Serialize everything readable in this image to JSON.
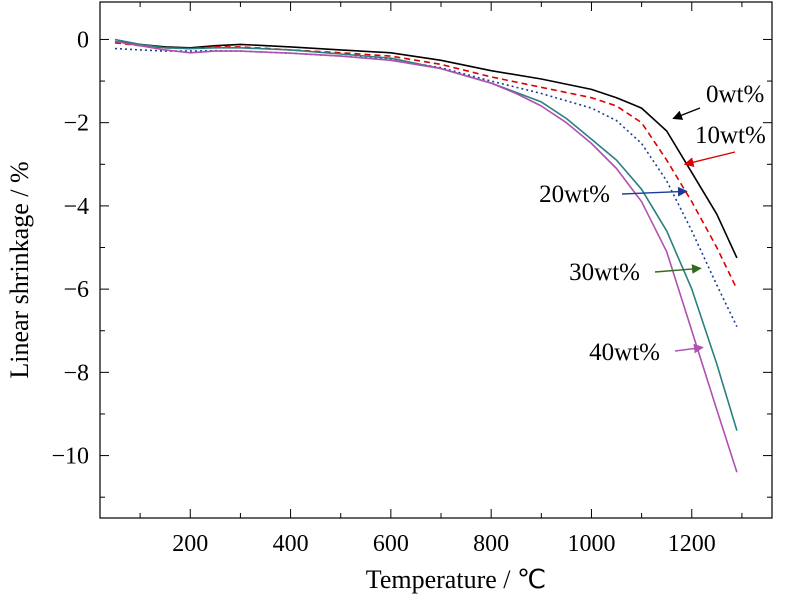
{
  "chart_data": {
    "type": "line",
    "title": "",
    "xlabel": "Temperature / ℃",
    "ylabel": "Linear shrinkage / %",
    "xlim": [
      20,
      1360
    ],
    "ylim": [
      -11.5,
      0.9
    ],
    "xticks": [
      200,
      400,
      600,
      800,
      1000,
      1200
    ],
    "yticks": [
      0,
      -2,
      -4,
      -6,
      -8,
      -10
    ],
    "xtick_labels": [
      "200",
      "400",
      "600",
      "800",
      "1000",
      "1200"
    ],
    "ytick_labels": [
      "0",
      "−2",
      "−4",
      "−6",
      "−8",
      "−10"
    ],
    "grid": false,
    "series": [
      {
        "name": "0wt%",
        "color": "#000000",
        "dash": "solid",
        "x": [
          50,
          100,
          150,
          200,
          250,
          300,
          400,
          500,
          600,
          700,
          800,
          900,
          1000,
          1050,
          1100,
          1150,
          1200,
          1250,
          1290
        ],
        "y": [
          -0.05,
          -0.12,
          -0.18,
          -0.2,
          -0.15,
          -0.12,
          -0.18,
          -0.25,
          -0.32,
          -0.5,
          -0.75,
          -0.95,
          -1.2,
          -1.4,
          -1.65,
          -2.2,
          -3.2,
          -4.2,
          -5.25
        ]
      },
      {
        "name": "10wt%",
        "color": "#dd0000",
        "dash": "dashed",
        "x": [
          50,
          100,
          150,
          200,
          250,
          300,
          400,
          500,
          600,
          700,
          800,
          900,
          1000,
          1050,
          1100,
          1150,
          1200,
          1250,
          1290
        ],
        "y": [
          -0.08,
          -0.15,
          -0.2,
          -0.22,
          -0.18,
          -0.18,
          -0.25,
          -0.32,
          -0.4,
          -0.6,
          -0.9,
          -1.15,
          -1.4,
          -1.6,
          -2.0,
          -2.9,
          -3.9,
          -5.0,
          -6.0
        ]
      },
      {
        "name": "20wt%",
        "color": "#1a3d99",
        "dash": "dotted",
        "x": [
          50,
          100,
          150,
          200,
          250,
          300,
          400,
          500,
          600,
          700,
          800,
          900,
          1000,
          1050,
          1100,
          1150,
          1200,
          1250,
          1290
        ],
        "y": [
          -0.22,
          -0.25,
          -0.28,
          -0.28,
          -0.27,
          -0.28,
          -0.33,
          -0.4,
          -0.48,
          -0.68,
          -1.0,
          -1.3,
          -1.65,
          -1.95,
          -2.5,
          -3.4,
          -4.6,
          -5.9,
          -6.9
        ]
      },
      {
        "name": "30wt%",
        "color": "#2a8080",
        "dash": "solid",
        "x": [
          50,
          100,
          150,
          200,
          250,
          300,
          400,
          500,
          600,
          700,
          800,
          900,
          950,
          1000,
          1050,
          1100,
          1150,
          1200,
          1250,
          1290
        ],
        "y": [
          0.0,
          -0.12,
          -0.2,
          -0.22,
          -0.2,
          -0.2,
          -0.25,
          -0.35,
          -0.45,
          -0.7,
          -1.05,
          -1.5,
          -1.9,
          -2.4,
          -2.9,
          -3.6,
          -4.6,
          -6.0,
          -7.8,
          -9.4
        ]
      },
      {
        "name": "40wt%",
        "color": "#b050b0",
        "dash": "solid",
        "x": [
          50,
          100,
          150,
          200,
          250,
          300,
          400,
          500,
          600,
          700,
          800,
          850,
          900,
          950,
          1000,
          1050,
          1100,
          1150,
          1200,
          1250,
          1290
        ],
        "y": [
          -0.05,
          -0.15,
          -0.25,
          -0.32,
          -0.28,
          -0.28,
          -0.33,
          -0.4,
          -0.5,
          -0.7,
          -1.05,
          -1.3,
          -1.6,
          -2.0,
          -2.5,
          -3.1,
          -3.9,
          -5.1,
          -7.0,
          -8.9,
          -10.4
        ]
      }
    ],
    "annotations": [
      {
        "label": "0wt%",
        "color": "#000000",
        "arrow_tip": [
          1163,
          -1.9
        ]
      },
      {
        "label": "10wt%",
        "color": "#dd0000",
        "arrow_tip": [
          1186,
          -3.0
        ]
      },
      {
        "label": "20wt%",
        "color": "#1a3d99",
        "arrow_tip": [
          1190,
          -3.65
        ]
      },
      {
        "label": "30wt%",
        "color": "#2a8080",
        "arrow_tip": [
          1218,
          -5.5
        ]
      },
      {
        "label": "40wt%",
        "color": "#b050b0",
        "arrow_tip": [
          1222,
          -7.4
        ]
      }
    ],
    "annotation_arrow_colors": [
      "#000000",
      "#dd0000",
      "#1a3d99",
      "#336b1f",
      "#b050b0"
    ]
  }
}
